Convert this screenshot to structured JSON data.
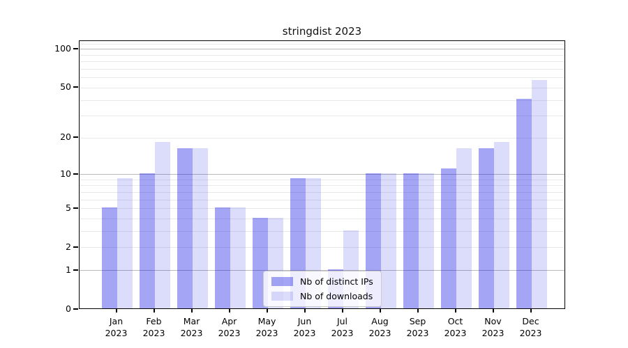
{
  "chart_data": {
    "type": "bar",
    "title": "stringdist 2023",
    "categories": [
      "Jan",
      "Feb",
      "Mar",
      "Apr",
      "May",
      "Jun",
      "Jul",
      "Aug",
      "Sep",
      "Oct",
      "Nov",
      "Dec"
    ],
    "year": "2023",
    "series": [
      {
        "name": "Nb of distinct IPs",
        "color": "rgba(18,18,230,0.38)",
        "values": [
          5,
          10,
          16,
          5,
          4,
          9,
          1,
          10,
          10,
          11,
          16,
          40
        ]
      },
      {
        "name": "Nb of downloads",
        "color": "rgba(18,18,230,0.15)",
        "values": [
          9,
          18,
          16,
          5,
          4,
          9,
          3,
          10,
          10,
          16,
          18,
          56
        ]
      }
    ],
    "yscale": "log1p",
    "ylim": [
      0,
      116
    ],
    "yticks": [
      0,
      1,
      2,
      5,
      10,
      20,
      50,
      100
    ],
    "grid_major": [
      1,
      10,
      100
    ],
    "grid_minor": [
      2,
      3,
      4,
      5,
      6,
      7,
      8,
      9,
      20,
      30,
      40,
      50,
      60,
      70,
      80,
      90,
      110
    ],
    "legend_position": "lower center",
    "colors": {
      "grid_major": "#b9b9b9",
      "grid_minor": "#e9e9e9",
      "spine": "#000000"
    }
  }
}
